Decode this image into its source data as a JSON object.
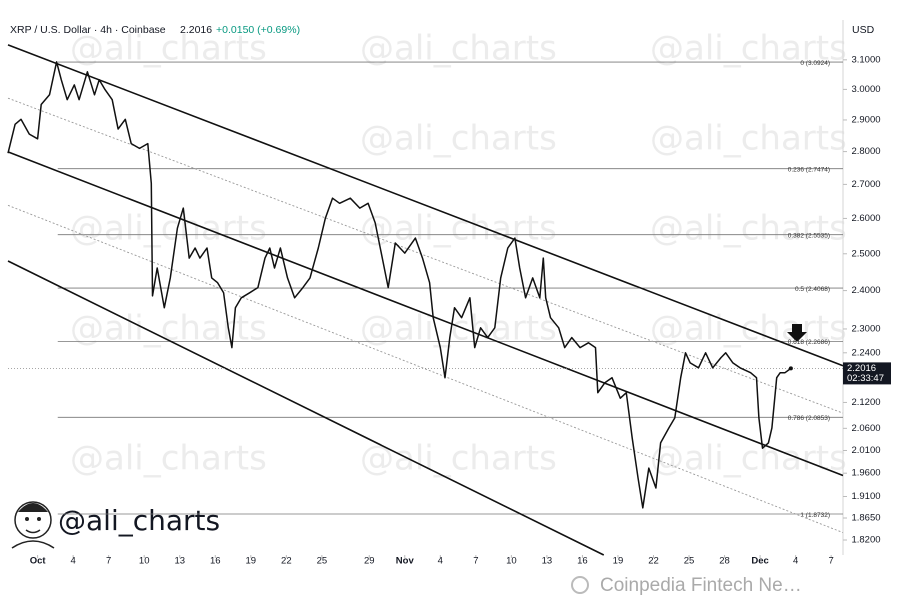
{
  "chart_data": {
    "type": "line",
    "title": "XRP / U.S. Dollar · 4h · Coinbase",
    "price": 2.2016,
    "change": "+0.0150 (+0.69%)",
    "currency": "USD",
    "countdown": "02:33:47",
    "watermark": "@ali_charts",
    "source": "Coinpedia Fintech Ne…",
    "color": "#111111",
    "y_scale": "log",
    "xlim": [
      -2.5,
      68
    ],
    "ylim": [
      1.79,
      3.24
    ],
    "xticks": [
      {
        "value": 0,
        "label": "Oct"
      },
      {
        "value": 3,
        "label": "4"
      },
      {
        "value": 6,
        "label": "7"
      },
      {
        "value": 9,
        "label": "10"
      },
      {
        "value": 12,
        "label": "13"
      },
      {
        "value": 15,
        "label": "16"
      },
      {
        "value": 18,
        "label": "19"
      },
      {
        "value": 21,
        "label": "22"
      },
      {
        "value": 24,
        "label": "25"
      },
      {
        "value": 28,
        "label": "29"
      },
      {
        "value": 31,
        "label": "Nov"
      },
      {
        "value": 34,
        "label": "4"
      },
      {
        "value": 37,
        "label": "7"
      },
      {
        "value": 40,
        "label": "10"
      },
      {
        "value": 43,
        "label": "13"
      },
      {
        "value": 46,
        "label": "16"
      },
      {
        "value": 49,
        "label": "19"
      },
      {
        "value": 52,
        "label": "22"
      },
      {
        "value": 55,
        "label": "25"
      },
      {
        "value": 58,
        "label": "28"
      },
      {
        "value": 61,
        "label": "Dec"
      },
      {
        "value": 64,
        "label": "4"
      },
      {
        "value": 67,
        "label": "7"
      }
    ],
    "yticks": [
      {
        "value": 3.1,
        "label": "3.1000"
      },
      {
        "value": 3.0,
        "label": "3.0000"
      },
      {
        "value": 2.9,
        "label": "2.9000"
      },
      {
        "value": 2.8,
        "label": "2.8000"
      },
      {
        "value": 2.7,
        "label": "2.7000"
      },
      {
        "value": 2.6,
        "label": "2.6000"
      },
      {
        "value": 2.5,
        "label": "2.5000"
      },
      {
        "value": 2.4,
        "label": "2.4000"
      },
      {
        "value": 2.3,
        "label": "2.3000"
      },
      {
        "value": 2.24,
        "label": "2.2400"
      },
      {
        "value": 2.12,
        "label": "2.1200"
      },
      {
        "value": 2.06,
        "label": "2.0600"
      },
      {
        "value": 2.01,
        "label": "2.0100"
      },
      {
        "value": 1.96,
        "label": "1.9600"
      },
      {
        "value": 1.91,
        "label": "1.9100"
      },
      {
        "value": 1.865,
        "label": "1.8650"
      },
      {
        "value": 1.82,
        "label": "1.8200"
      }
    ],
    "fib_levels": [
      {
        "value": 3.0924,
        "label": "0 (3.0924)"
      },
      {
        "value": 2.7474,
        "label": "0.236 (2.7474)"
      },
      {
        "value": 2.5535,
        "label": "0.382 (2.5535)"
      },
      {
        "value": 2.4068,
        "label": "0.5 (2.4068)"
      },
      {
        "value": 2.2686,
        "label": "0.618 (2.2686)"
      },
      {
        "value": 2.0853,
        "label": "0.786 (2.0853)"
      },
      {
        "value": 1.8732,
        "label": "1 (1.8732)"
      }
    ],
    "trendlines": [
      {
        "x": [
          -2.5,
          68
        ],
        "y": [
          3.152,
          2.208
        ],
        "style": "solid"
      },
      {
        "x": [
          -2.5,
          68
        ],
        "y": [
          2.971,
          2.095
        ],
        "style": "dashed"
      },
      {
        "x": [
          -2.5,
          68
        ],
        "y": [
          2.799,
          1.955
        ],
        "style": "solid"
      },
      {
        "x": [
          -2.5,
          68
        ],
        "y": [
          2.638,
          1.835
        ],
        "style": "dashed"
      },
      {
        "x": [
          -2.5,
          47.8
        ],
        "y": [
          2.48,
          1.79
        ],
        "style": "solid"
      }
    ],
    "x": [
      -2.5,
      -1.9,
      -1.4,
      -0.7,
      0,
      0.3,
      1.0,
      1.6,
      2.0,
      2.5,
      3.1,
      3.5,
      4.2,
      4.8,
      5.2,
      5.7,
      6.3,
      6.8,
      7.4,
      7.9,
      8.6,
      9.3,
      9.6,
      9.7,
      10.1,
      10.7,
      11.2,
      11.8,
      12.3,
      12.8,
      13.3,
      13.7,
      14.3,
      14.7,
      15.2,
      15.7,
      16.1,
      16.4,
      16.7,
      17.2,
      17.9,
      18.6,
      19.2,
      19.6,
      20.0,
      20.5,
      21.1,
      21.7,
      22.4,
      23.0,
      23.7,
      24.3,
      24.9,
      25.5,
      26.4,
      27.2,
      27.9,
      28.5,
      29.1,
      29.6,
      30.2,
      31.0,
      31.9,
      32.5,
      33.1,
      33.4,
      34.0,
      34.4,
      34.8,
      35.2,
      35.8,
      36.5,
      36.9,
      37.4,
      38.0,
      38.6,
      39.1,
      39.7,
      40.3,
      40.7,
      41.2,
      41.8,
      42.4,
      42.7,
      42.9,
      43.3,
      44.0,
      44.5,
      45.1,
      45.8,
      46.5,
      47.1,
      47.3,
      47.9,
      48.5,
      49.2,
      49.7,
      50.2,
      50.7,
      51.1,
      51.6,
      52.2,
      52.6,
      53.3,
      53.8,
      54.3,
      54.7,
      55.1,
      55.8,
      56.4,
      57.0,
      57.7,
      58.1,
      58.7,
      59.3,
      60.2,
      60.7,
      60.9,
      61.2,
      61.7,
      62.0,
      62.4,
      62.7,
      63.1,
      63.6
    ],
    "values": [
      2.795,
      2.886,
      2.902,
      2.855,
      2.84,
      2.95,
      2.982,
      3.093,
      3.032,
      2.966,
      3.015,
      2.966,
      3.059,
      2.982,
      3.032,
      2.999,
      2.966,
      2.871,
      2.902,
      2.825,
      2.81,
      2.825,
      2.703,
      2.386,
      2.461,
      2.355,
      2.434,
      2.572,
      2.63,
      2.488,
      2.516,
      2.488,
      2.516,
      2.434,
      2.421,
      2.394,
      2.303,
      2.253,
      2.355,
      2.381,
      2.394,
      2.408,
      2.488,
      2.516,
      2.461,
      2.516,
      2.434,
      2.381,
      2.408,
      2.434,
      2.516,
      2.601,
      2.659,
      2.644,
      2.659,
      2.63,
      2.644,
      2.587,
      2.488,
      2.408,
      2.53,
      2.502,
      2.544,
      2.488,
      2.421,
      2.329,
      2.253,
      2.179,
      2.278,
      2.355,
      2.329,
      2.381,
      2.253,
      2.303,
      2.278,
      2.303,
      2.434,
      2.516,
      2.544,
      2.461,
      2.381,
      2.434,
      2.381,
      2.488,
      2.381,
      2.329,
      2.303,
      2.253,
      2.278,
      2.253,
      2.265,
      2.253,
      2.143,
      2.167,
      2.179,
      2.13,
      2.143,
      2.038,
      1.949,
      1.886,
      1.971,
      1.928,
      2.027,
      2.061,
      2.084,
      2.179,
      2.24,
      2.215,
      2.203,
      2.24,
      2.203,
      2.228,
      2.24,
      2.215,
      2.203,
      2.191,
      2.179,
      2.084,
      2.015,
      2.027,
      2.061,
      2.179,
      2.191,
      2.191,
      2.2016
    ]
  }
}
